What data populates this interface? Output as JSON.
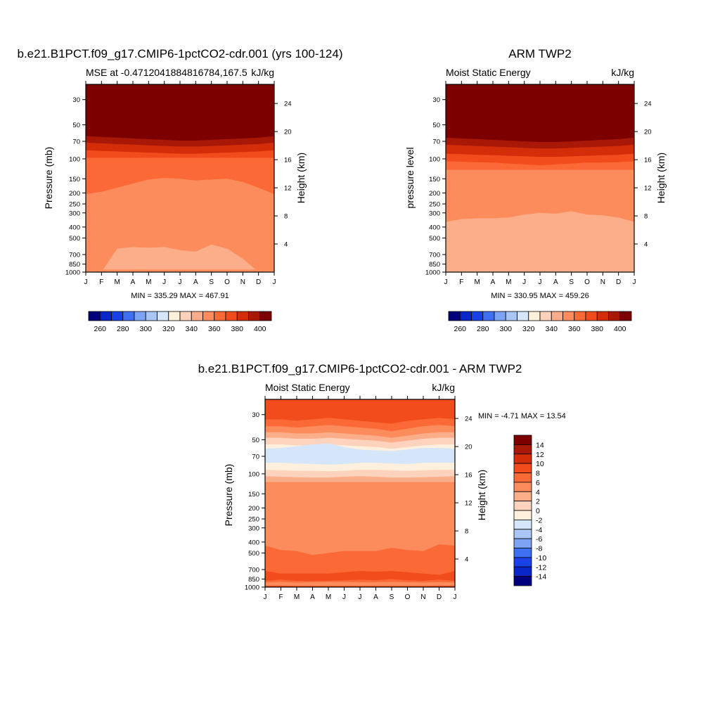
{
  "chart_data": [
    {
      "type": "contour",
      "title": "b.e21.B1PCT.f09_g17.CMIP6-1pctCO2-cdr.001 (yrs 100-124)",
      "subtitle_left": "MSE at -0.4712041884816784,167.5",
      "subtitle_right": "kJ/kg",
      "ylabel": "Pressure (mb)",
      "ylabel_right": "Height (km)",
      "x_ticks": [
        "J",
        "F",
        "M",
        "A",
        "M",
        "J",
        "J",
        "A",
        "S",
        "O",
        "N",
        "D",
        "J"
      ],
      "p_ticks": [
        30,
        50,
        70,
        100,
        150,
        200,
        250,
        300,
        400,
        500,
        700,
        850,
        1000
      ],
      "height_ticks": [
        4,
        8,
        12,
        16,
        20,
        24
      ],
      "ylim_mb": [
        1000,
        22
      ],
      "minmax_text": "MIN = 335.29 MAX = 467.91",
      "colorbar_orientation": "horizontal",
      "colorbar_ticks": [
        260,
        280,
        300,
        320,
        340,
        360,
        380,
        400
      ],
      "colorbar_levels": [
        250,
        260,
        270,
        280,
        290,
        300,
        310,
        320,
        330,
        340,
        350,
        360,
        370,
        380,
        390,
        400,
        410
      ],
      "colorbar_colors": [
        "#00007f",
        "#0a25c8",
        "#1a40e8",
        "#3f6ff2",
        "#7da3f4",
        "#a9c6f7",
        "#d6e6fa",
        "#fff0dd",
        "#fdd3bd",
        "#fcae8b",
        "#fc8c5c",
        "#fb6a36",
        "#f24c1c",
        "#d32d0a",
        "#a91706",
        "#7d0000"
      ],
      "bands": [
        {
          "value": 410,
          "top": [
            22,
            22,
            22,
            22,
            22,
            22,
            22,
            22,
            22,
            22,
            22,
            22,
            22
          ]
        },
        {
          "value": 400,
          "top": [
            56,
            57,
            58,
            59,
            60,
            61,
            62,
            62,
            61,
            60,
            59,
            58,
            56
          ]
        },
        {
          "value": 390,
          "top": [
            63,
            64,
            65,
            66,
            67,
            68,
            69,
            69,
            68,
            67,
            66,
            65,
            63
          ]
        },
        {
          "value": 380,
          "top": [
            72,
            73,
            74,
            75,
            76,
            77,
            78,
            78,
            77,
            76,
            75,
            74,
            72
          ]
        },
        {
          "value": 370,
          "top": [
            84,
            85,
            86,
            87,
            88,
            89,
            90,
            90,
            89,
            88,
            87,
            86,
            84
          ]
        },
        {
          "value": 360,
          "top": [
            98,
            98,
            98,
            98,
            98,
            98,
            98,
            98,
            98,
            98,
            98,
            98,
            98
          ]
        },
        {
          "value": 350,
          "top": [
            205,
            195,
            180,
            165,
            152,
            148,
            150,
            155,
            152,
            150,
            160,
            180,
            205
          ]
        },
        {
          "value": 340,
          "top": [
            1000,
            1000,
            620,
            600,
            610,
            600,
            640,
            660,
            570,
            620,
            760,
            1000,
            1000
          ]
        },
        {
          "value": 350,
          "top": [
            950,
            950,
            950,
            948,
            948,
            950,
            950,
            950,
            950,
            950,
            950,
            950,
            950
          ]
        }
      ]
    },
    {
      "type": "contour",
      "title": "ARM TWP2",
      "subtitle_left": "Moist Static Energy",
      "subtitle_right": "kJ/kg",
      "ylabel": "pressure level",
      "ylabel_right": "Height (km)",
      "x_ticks": [
        "J",
        "F",
        "M",
        "A",
        "M",
        "J",
        "J",
        "A",
        "S",
        "O",
        "N",
        "D",
        "J"
      ],
      "p_ticks": [
        30,
        50,
        70,
        100,
        150,
        200,
        250,
        300,
        400,
        500,
        700,
        850,
        1000
      ],
      "height_ticks": [
        4,
        8,
        12,
        16,
        20,
        24
      ],
      "ylim_mb": [
        1000,
        22
      ],
      "minmax_text": "MIN = 330.95 MAX = 459.26",
      "colorbar_orientation": "horizontal",
      "colorbar_ticks": [
        260,
        280,
        300,
        320,
        340,
        360,
        380,
        400
      ],
      "colorbar_levels": [
        250,
        260,
        270,
        280,
        290,
        300,
        310,
        320,
        330,
        340,
        350,
        360,
        370,
        380,
        390,
        400,
        410
      ],
      "colorbar_colors": [
        "#00007f",
        "#0a25c8",
        "#1a40e8",
        "#3f6ff2",
        "#7da3f4",
        "#a9c6f7",
        "#d6e6fa",
        "#fff0dd",
        "#fdd3bd",
        "#fcae8b",
        "#fc8c5c",
        "#fb6a36",
        "#f24c1c",
        "#d32d0a",
        "#a91706",
        "#7d0000"
      ],
      "bands": [
        {
          "value": 410,
          "top": [
            22,
            22,
            22,
            22,
            22,
            22,
            22,
            22,
            22,
            22,
            22,
            22,
            22
          ]
        },
        {
          "value": 400,
          "top": [
            58,
            59,
            60,
            61,
            62,
            63,
            64,
            64,
            63,
            62,
            61,
            60,
            58
          ]
        },
        {
          "value": 390,
          "top": [
            65,
            66,
            67,
            68,
            69,
            70,
            71,
            71,
            70,
            69,
            68,
            67,
            65
          ]
        },
        {
          "value": 380,
          "top": [
            75,
            76,
            77,
            78,
            79,
            80,
            81,
            81,
            80,
            79,
            78,
            77,
            75
          ]
        },
        {
          "value": 370,
          "top": [
            90,
            91,
            92,
            93,
            94,
            95,
            96,
            96,
            95,
            94,
            93,
            92,
            90
          ]
        },
        {
          "value": 360,
          "top": [
            105,
            106,
            107,
            108,
            110,
            112,
            114,
            112,
            110,
            108,
            108,
            107,
            105
          ]
        },
        {
          "value": 350,
          "top": [
            125,
            125,
            125,
            125,
            125,
            125,
            125,
            125,
            125,
            125,
            125,
            125,
            125
          ]
        },
        {
          "value": 340,
          "top": [
            360,
            340,
            335,
            335,
            330,
            310,
            300,
            305,
            290,
            310,
            315,
            330,
            360
          ]
        },
        {
          "value": 340,
          "top": [
            930,
            930,
            930,
            925,
            925,
            928,
            930,
            930,
            928,
            928,
            930,
            930,
            930
          ]
        }
      ]
    },
    {
      "type": "contour",
      "title": "b.e21.B1PCT.f09_g17.CMIP6-1pctCO2-cdr.001 - ARM TWP2",
      "subtitle_left": "Moist Static Energy",
      "subtitle_right": "kJ/kg",
      "ylabel": "Pressure (mb)",
      "ylabel_right": "Height (km)",
      "x_ticks": [
        "J",
        "F",
        "M",
        "A",
        "M",
        "J",
        "J",
        "A",
        "S",
        "O",
        "N",
        "D",
        "J"
      ],
      "p_ticks": [
        30,
        50,
        70,
        100,
        150,
        200,
        250,
        300,
        400,
        500,
        700,
        850,
        1000
      ],
      "height_ticks": [
        4,
        8,
        12,
        16,
        20,
        24
      ],
      "ylim_mb": [
        1000,
        22
      ],
      "minmax_text": "MIN =  -4.71 MAX =  13.54",
      "colorbar_orientation": "vertical",
      "colorbar_ticks": [
        14,
        12,
        10,
        8,
        6,
        4,
        2,
        0,
        -2,
        -4,
        -6,
        -8,
        -10,
        -12,
        -14
      ],
      "colorbar_levels": [
        -16,
        -14,
        -12,
        -10,
        -8,
        -6,
        -4,
        -2,
        0,
        2,
        4,
        6,
        8,
        10,
        12,
        14,
        16
      ],
      "colorbar_colors": [
        "#00007f",
        "#0a25c8",
        "#1a40e8",
        "#3f6ff2",
        "#7da3f4",
        "#a9c6f7",
        "#d6e6fa",
        "#fff0dd",
        "#fdd3bd",
        "#fcae8b",
        "#fc8c5c",
        "#fb6a36",
        "#f24c1c",
        "#d32d0a",
        "#a91706",
        "#7d0000"
      ],
      "bands": [
        {
          "value": 8,
          "top": [
            22,
            22,
            22,
            22,
            22,
            22,
            22,
            22,
            22,
            22,
            22,
            22,
            22
          ]
        },
        {
          "value": 6,
          "top": [
            33,
            33,
            34,
            33,
            32,
            33,
            34,
            35,
            36,
            34,
            33,
            32,
            33
          ]
        },
        {
          "value": 4,
          "top": [
            38,
            38,
            39,
            38,
            37,
            38,
            39,
            40,
            42,
            40,
            38,
            37,
            38
          ]
        },
        {
          "value": 2,
          "top": [
            43,
            43,
            44,
            44,
            43,
            44,
            45,
            46,
            48,
            46,
            44,
            43,
            43
          ]
        },
        {
          "value": 0,
          "top": [
            48,
            48,
            49,
            49,
            48,
            49,
            50,
            51,
            53,
            51,
            49,
            48,
            48
          ]
        },
        {
          "value": -2,
          "top": [
            55,
            55,
            56,
            56,
            55,
            56,
            57,
            58,
            60,
            58,
            56,
            55,
            55
          ]
        },
        {
          "value": -4,
          "top": [
            60,
            59,
            57,
            55,
            54,
            58,
            61,
            62,
            63,
            61,
            59,
            59,
            60
          ]
        },
        {
          "value": -2,
          "top": [
            80,
            80,
            81,
            82,
            83,
            82,
            80,
            80,
            81,
            82,
            80,
            80,
            80
          ]
        },
        {
          "value": 0,
          "top": [
            92,
            93,
            94,
            94,
            95,
            94,
            92,
            92,
            93,
            94,
            93,
            92,
            92
          ]
        },
        {
          "value": 2,
          "top": [
            105,
            106,
            107,
            108,
            108,
            106,
            105,
            106,
            108,
            108,
            107,
            106,
            105
          ]
        },
        {
          "value": 4,
          "top": [
            118,
            118,
            118,
            118,
            118,
            118,
            118,
            118,
            118,
            118,
            118,
            118,
            118
          ]
        },
        {
          "value": 6,
          "top": [
            430,
            470,
            480,
            520,
            500,
            480,
            480,
            480,
            450,
            470,
            480,
            420,
            430
          ]
        },
        {
          "value": 8,
          "top": [
            720,
            760,
            760,
            760,
            760,
            740,
            720,
            730,
            720,
            740,
            760,
            780,
            720
          ]
        },
        {
          "value": 6,
          "top": [
            880,
            860,
            880,
            880,
            880,
            870,
            860,
            870,
            850,
            870,
            880,
            860,
            880
          ]
        },
        {
          "value": 4,
          "top": [
            910,
            900,
            910,
            905,
            900,
            900,
            905,
            905,
            900,
            905,
            910,
            905,
            910
          ]
        },
        {
          "value": 8,
          "top": [
            970,
            970,
            975,
            975,
            975,
            975,
            975,
            975,
            975,
            975,
            975,
            970,
            970
          ]
        }
      ]
    }
  ]
}
